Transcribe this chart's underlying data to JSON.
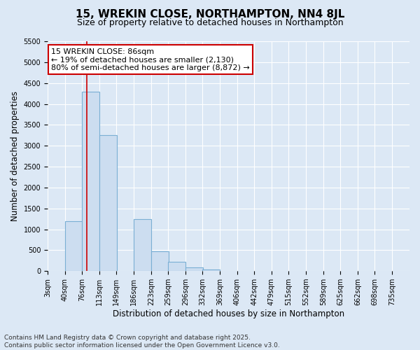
{
  "title": "15, WREKIN CLOSE, NORTHAMPTON, NN4 8JL",
  "subtitle": "Size of property relative to detached houses in Northampton",
  "xlabel": "Distribution of detached houses by size in Northampton",
  "ylabel": "Number of detached properties",
  "footer_line1": "Contains HM Land Registry data © Crown copyright and database right 2025.",
  "footer_line2": "Contains public sector information licensed under the Open Government Licence v3.0.",
  "bin_labels": [
    "3sqm",
    "40sqm",
    "76sqm",
    "113sqm",
    "149sqm",
    "186sqm",
    "223sqm",
    "259sqm",
    "296sqm",
    "332sqm",
    "369sqm",
    "406sqm",
    "442sqm",
    "479sqm",
    "515sqm",
    "552sqm",
    "589sqm",
    "625sqm",
    "662sqm",
    "698sqm",
    "735sqm"
  ],
  "bin_edges": [
    3,
    40,
    76,
    113,
    149,
    186,
    223,
    259,
    296,
    332,
    369,
    406,
    442,
    479,
    515,
    552,
    589,
    625,
    662,
    698,
    735
  ],
  "bar_heights": [
    0,
    1200,
    4300,
    3250,
    0,
    1250,
    480,
    220,
    80,
    30,
    0,
    0,
    0,
    0,
    0,
    0,
    0,
    0,
    0,
    0
  ],
  "bar_color": "#ccddf0",
  "bar_edgecolor": "#7aafd4",
  "bar_linewidth": 0.8,
  "vline_x": 86,
  "vline_color": "#cc0000",
  "vline_linewidth": 1.2,
  "annotation_line1": "15 WREKIN CLOSE: 86sqm",
  "annotation_line2": "← 19% of detached houses are smaller (2,130)",
  "annotation_line3": "80% of semi-detached houses are larger (8,872) →",
  "annotation_box_edgecolor": "#cc0000",
  "annotation_box_facecolor": "#ffffff",
  "ylim": [
    0,
    5500
  ],
  "yticks": [
    0,
    500,
    1000,
    1500,
    2000,
    2500,
    3000,
    3500,
    4000,
    4500,
    5000,
    5500
  ],
  "bg_color": "#dce8f5",
  "plot_bg_color": "#dce8f5",
  "grid_color": "#ffffff",
  "title_fontsize": 11,
  "subtitle_fontsize": 9,
  "axis_label_fontsize": 8.5,
  "tick_fontsize": 7,
  "annotation_fontsize": 8,
  "footer_fontsize": 6.5
}
